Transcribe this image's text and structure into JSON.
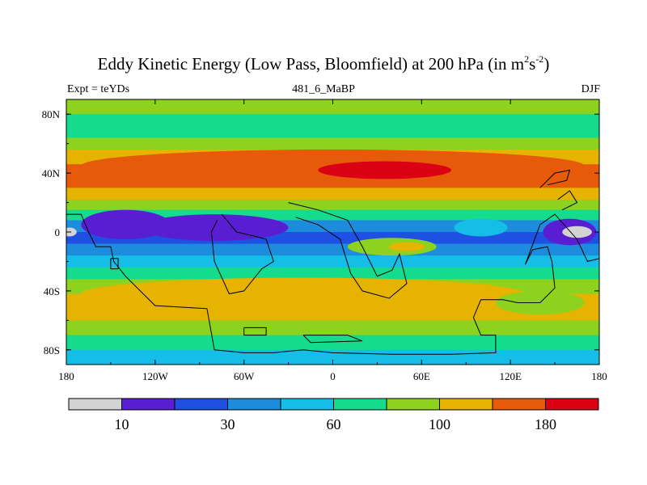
{
  "chart_data": {
    "type": "heatmap",
    "title_main": "Eddy Kinetic Energy (Low Pass, Bloomfield) at 200 hPa (in m",
    "title_sup1": "2",
    "title_mid": "s",
    "title_sup2": "-2",
    "title_end": ")",
    "left_subtitle": "Expt = teYDs",
    "center_subtitle": "481_6_MaBP",
    "right_subtitle": "DJF",
    "x_range": [
      -180,
      180
    ],
    "y_range": [
      -90,
      90
    ],
    "x_ticks": [
      {
        "value": -180,
        "label": "180"
      },
      {
        "value": -120,
        "label": "120W"
      },
      {
        "value": -60,
        "label": "60W"
      },
      {
        "value": 0,
        "label": "0"
      },
      {
        "value": 60,
        "label": "60E"
      },
      {
        "value": 120,
        "label": "120E"
      },
      {
        "value": 180,
        "label": "180"
      }
    ],
    "y_ticks": [
      {
        "value": 80,
        "label": "80N"
      },
      {
        "value": 40,
        "label": "40N"
      },
      {
        "value": 0,
        "label": "0"
      },
      {
        "value": -40,
        "label": "40S"
      },
      {
        "value": -80,
        "label": "80S"
      }
    ],
    "colorbar": {
      "colors": [
        "#d3d3d3",
        "#5a1ed2",
        "#1e50e1",
        "#1e8cdc",
        "#14bee6",
        "#14dc8c",
        "#8cd21e",
        "#e6b400",
        "#e65a0a",
        "#dc0014"
      ],
      "labels": [
        {
          "boundary": 1,
          "text": "10"
        },
        {
          "boundary": 3,
          "text": "30"
        },
        {
          "boundary": 5,
          "text": "60"
        },
        {
          "boundary": 7,
          "text": "100"
        },
        {
          "boundary": 9,
          "text": "180"
        }
      ]
    },
    "zonal_profile": [
      {
        "lat": 90,
        "level": 6
      },
      {
        "lat": 80,
        "level": 5
      },
      {
        "lat": 72,
        "level": 5
      },
      {
        "lat": 64,
        "level": 6
      },
      {
        "lat": 56,
        "level": 7
      },
      {
        "lat": 46,
        "level": 8
      },
      {
        "lat": 38,
        "level": 8
      },
      {
        "lat": 30,
        "level": 7
      },
      {
        "lat": 22,
        "level": 6
      },
      {
        "lat": 15,
        "level": 5
      },
      {
        "lat": 8,
        "level": 3
      },
      {
        "lat": 0,
        "level": 2
      },
      {
        "lat": -8,
        "level": 3
      },
      {
        "lat": -16,
        "level": 4
      },
      {
        "lat": -24,
        "level": 5
      },
      {
        "lat": -32,
        "level": 6
      },
      {
        "lat": -42,
        "level": 7
      },
      {
        "lat": -52,
        "level": 7
      },
      {
        "lat": -60,
        "level": 6
      },
      {
        "lat": -70,
        "level": 5
      },
      {
        "lat": -80,
        "level": 4
      },
      {
        "lat": -90,
        "level": 4
      }
    ],
    "features": [
      {
        "lon": 0,
        "lat": 45,
        "dlon": 170,
        "dlat": 11,
        "level": 8
      },
      {
        "lon": 35,
        "lat": 42,
        "dlon": 45,
        "dlat": 6,
        "level": 9
      },
      {
        "lon": -140,
        "lat": 5,
        "dlon": 30,
        "dlat": 10,
        "level": 1
      },
      {
        "lon": -80,
        "lat": 3,
        "dlon": 50,
        "dlat": 9,
        "level": 1
      },
      {
        "lon": 160,
        "lat": 0,
        "dlon": 18,
        "dlat": 9,
        "level": 1
      },
      {
        "lon": 165,
        "lat": 0,
        "dlon": 10,
        "dlat": 4,
        "level": 0
      },
      {
        "lon": -178,
        "lat": 0,
        "dlon": 5,
        "dlat": 3,
        "level": 0
      },
      {
        "lon": 40,
        "lat": -10,
        "dlon": 30,
        "dlat": 6,
        "level": 6
      },
      {
        "lon": 50,
        "lat": -10,
        "dlon": 12,
        "dlat": 3,
        "level": 7
      },
      {
        "lon": 100,
        "lat": 3,
        "dlon": 18,
        "dlat": 6,
        "level": 4
      },
      {
        "lon": -20,
        "lat": -42,
        "dlon": 150,
        "dlat": 11,
        "level": 7
      },
      {
        "lon": 140,
        "lat": -48,
        "dlon": 30,
        "dlat": 8,
        "level": 6
      }
    ],
    "coastlines": [
      [
        [
          -180,
          12
        ],
        [
          -170,
          12
        ],
        [
          -165,
          0
        ],
        [
          -160,
          -10
        ],
        [
          -150,
          -10
        ],
        [
          -148,
          -20
        ],
        [
          -140,
          -30
        ],
        [
          -120,
          -50
        ],
        [
          -85,
          -52
        ],
        [
          -80,
          -80
        ],
        [
          -60,
          -82
        ],
        [
          -40,
          -82
        ],
        [
          -20,
          -80
        ],
        [
          0,
          -82
        ],
        [
          40,
          -83
        ],
        [
          80,
          -83
        ],
        [
          110,
          -82
        ],
        [
          110,
          -70
        ],
        [
          100,
          -70
        ],
        [
          95,
          -58
        ],
        [
          100,
          -46
        ],
        [
          115,
          -46
        ],
        [
          125,
          -48
        ],
        [
          140,
          -48
        ],
        [
          150,
          -38
        ],
        [
          148,
          -20
        ],
        [
          145,
          -10
        ],
        [
          135,
          -12
        ],
        [
          130,
          -22
        ],
        [
          140,
          5
        ],
        [
          150,
          12
        ],
        [
          165,
          -5
        ],
        [
          172,
          -20
        ],
        [
          180,
          -18
        ]
      ],
      [
        [
          -75,
          12
        ],
        [
          -65,
          0
        ],
        [
          -52,
          -3
        ],
        [
          -45,
          -5
        ],
        [
          -40,
          -20
        ],
        [
          -48,
          -25
        ],
        [
          -60,
          -40
        ],
        [
          -70,
          -42
        ],
        [
          -80,
          -20
        ],
        [
          -82,
          0
        ],
        [
          -78,
          8
        ]
      ],
      [
        [
          -30,
          20
        ],
        [
          -10,
          15
        ],
        [
          10,
          8
        ],
        [
          20,
          -10
        ],
        [
          30,
          -30
        ],
        [
          40,
          -26
        ],
        [
          45,
          -15
        ],
        [
          50,
          -35
        ],
        [
          38,
          -45
        ],
        [
          20,
          -40
        ],
        [
          12,
          -28
        ],
        [
          5,
          -5
        ],
        [
          -10,
          5
        ],
        [
          -25,
          10
        ]
      ],
      [
        [
          -150,
          -18
        ],
        [
          -145,
          -18
        ],
        [
          -145,
          -25
        ],
        [
          -150,
          -25
        ],
        [
          -150,
          -18
        ]
      ],
      [
        [
          -60,
          -65
        ],
        [
          -45,
          -65
        ],
        [
          -45,
          -70
        ],
        [
          -60,
          -70
        ],
        [
          -60,
          -65
        ]
      ],
      [
        [
          -20,
          -70
        ],
        [
          10,
          -70
        ],
        [
          20,
          -74
        ],
        [
          -15,
          -75
        ],
        [
          -20,
          -70
        ]
      ],
      [
        [
          140,
          30
        ],
        [
          150,
          40
        ],
        [
          160,
          42
        ],
        [
          158,
          35
        ],
        [
          145,
          32
        ]
      ],
      [
        [
          152,
          22
        ],
        [
          160,
          28
        ],
        [
          165,
          20
        ],
        [
          155,
          15
        ]
      ]
    ]
  }
}
